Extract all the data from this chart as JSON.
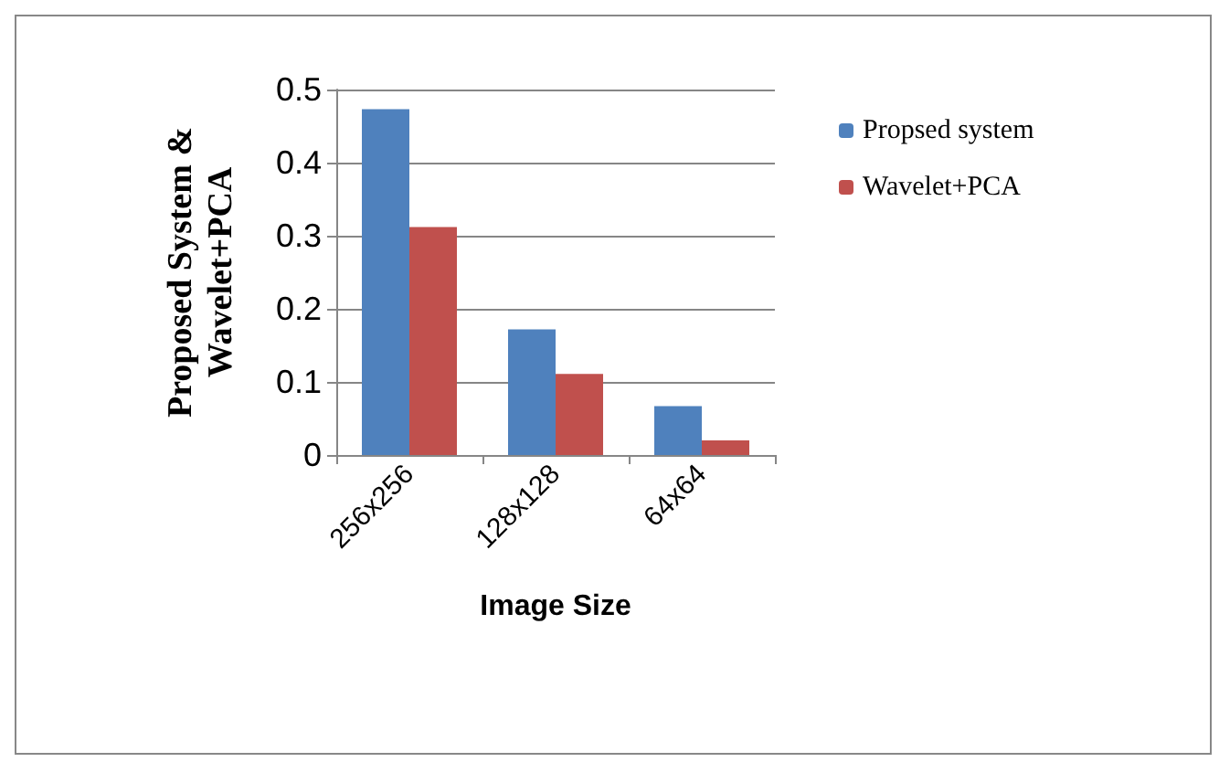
{
  "chart_data": {
    "type": "bar",
    "categories": [
      "256x256",
      "128x128",
      "64x64"
    ],
    "series": [
      {
        "name": "Propsed system",
        "color": "#4f81bd",
        "values": [
          0.473,
          0.172,
          0.067
        ]
      },
      {
        "name": "Wavelet+PCA",
        "color": "#c0504d",
        "values": [
          0.312,
          0.111,
          0.02
        ]
      }
    ],
    "ylabel": "Proposed System &\nWavelet+PCA",
    "xlabel": "Image Size",
    "ylim": [
      0,
      0.5
    ],
    "yticks": [
      0,
      0.1,
      0.2,
      0.3,
      0.4,
      0.5
    ],
    "grid": "y",
    "legend": "right"
  }
}
